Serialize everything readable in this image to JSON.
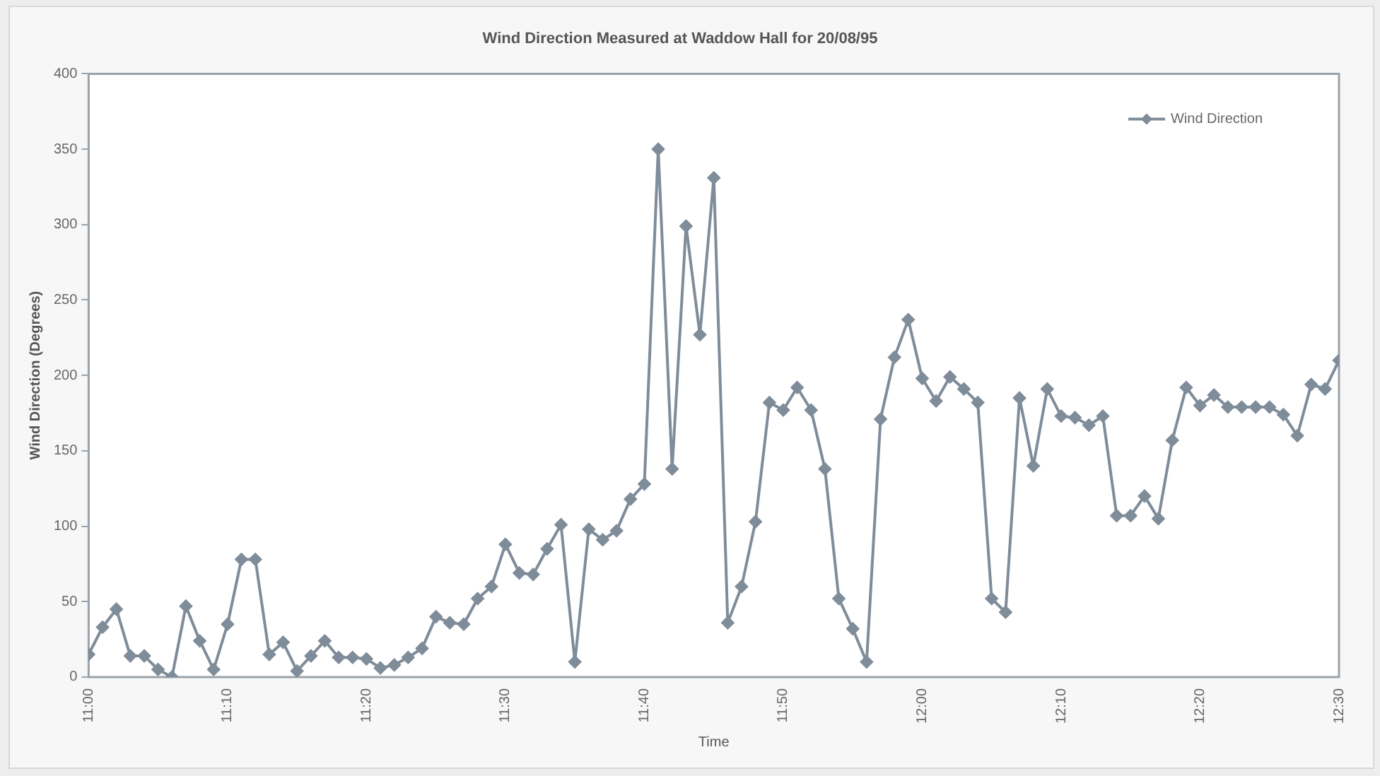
{
  "chart_data": {
    "type": "line",
    "title": "Wind Direction Measured at Waddow Hall for 20/08/95",
    "xlabel": "Time",
    "ylabel": "Wind Direction (Degrees)",
    "x": [
      11,
      11.0167,
      11.0333,
      11.05,
      11.0667,
      11.0833,
      11.1,
      11.1167,
      11.1333,
      11.15,
      11.1667,
      11.1833,
      11.2,
      11.2167,
      11.2333,
      11.25,
      11.2667,
      11.2833,
      11.3,
      11.3167,
      11.3333,
      11.35,
      11.3667,
      11.3833,
      11.4,
      11.4167,
      11.4333,
      11.45,
      11.4667,
      11.4833,
      11.5,
      11.5167,
      11.5333,
      11.55,
      11.5667,
      11.5833,
      11.6,
      11.6167,
      11.6333,
      11.65,
      11.6667,
      11.6833,
      11.7,
      11.7167,
      11.7333,
      11.75,
      11.7667,
      11.7833,
      11.8,
      11.8167,
      11.8333,
      11.85,
      11.8667,
      11.8833,
      11.9,
      11.9167,
      11.9333,
      11.95,
      11.9667,
      11.9833,
      12,
      12.0167,
      12.0333,
      12.05,
      12.0667,
      12.0833,
      12.1,
      12.1167,
      12.1333,
      12.15,
      12.1667,
      12.1833,
      12.2,
      12.2167,
      12.2333,
      12.25,
      12.2667,
      12.2833,
      12.3,
      12.3167,
      12.3333,
      12.35,
      12.3667,
      12.3833,
      12.4,
      12.4167,
      12.4333,
      12.45,
      12.4667,
      12.4833,
      12.5
    ],
    "series": [
      {
        "name": "Wind Direction",
        "color": "#7f8c99",
        "values": [
          15,
          33,
          45,
          14,
          14,
          5,
          0,
          47,
          24,
          5,
          35,
          78,
          78,
          15,
          23,
          4,
          14,
          24,
          13,
          13,
          12,
          6,
          8,
          13,
          19,
          40,
          36,
          35,
          52,
          60,
          88,
          69,
          68,
          85,
          101,
          10,
          98,
          91,
          97,
          118,
          128,
          350,
          138,
          299,
          227,
          331,
          36,
          60,
          103,
          182,
          177,
          192,
          177,
          138,
          52,
          32,
          10,
          171,
          212,
          237,
          198,
          183,
          199,
          191,
          182,
          52,
          43,
          185,
          140,
          191,
          173,
          172,
          167,
          173,
          107,
          107,
          120,
          105,
          157,
          192,
          180,
          187,
          179,
          179,
          179,
          179,
          174,
          160,
          194,
          191,
          210
        ]
      }
    ],
    "xlim": [
      11,
      12.5
    ],
    "xticks": [
      {
        "value": 11,
        "label": "11:00"
      },
      {
        "value": 11.1667,
        "label": "11:10"
      },
      {
        "value": 11.3333,
        "label": "11:20"
      },
      {
        "value": 11.5,
        "label": "11:30"
      },
      {
        "value": 11.6667,
        "label": "11:40"
      },
      {
        "value": 11.8333,
        "label": "11:50"
      },
      {
        "value": 12,
        "label": "12:00"
      },
      {
        "value": 12.1667,
        "label": "12:10"
      },
      {
        "value": 12.3333,
        "label": "12:20"
      },
      {
        "value": 12.5,
        "label": "12:30"
      }
    ],
    "ylim": [
      0,
      400
    ],
    "yticks": [
      0,
      50,
      100,
      150,
      200,
      250,
      300,
      350,
      400
    ],
    "grid": false,
    "legend": "top right",
    "marker": "diamond",
    "line_style": "solid"
  }
}
